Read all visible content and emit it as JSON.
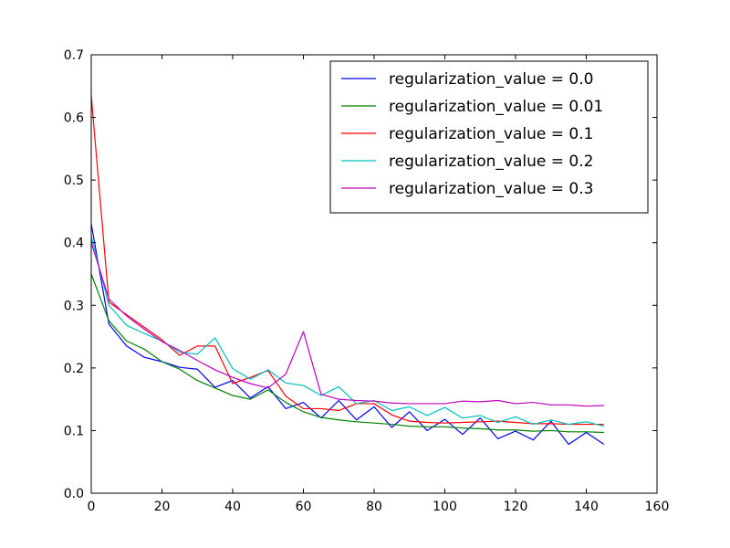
{
  "chart_data": {
    "type": "line",
    "title": "",
    "xlabel": "",
    "ylabel": "",
    "xlim": [
      0,
      160
    ],
    "ylim": [
      0.0,
      0.7
    ],
    "x_ticks": [
      0,
      20,
      40,
      60,
      80,
      100,
      120,
      140,
      160
    ],
    "y_ticks": [
      0.0,
      0.1,
      0.2,
      0.3,
      0.4,
      0.5,
      0.6,
      0.7
    ],
    "x_tick_labels": [
      "0",
      "20",
      "40",
      "60",
      "80",
      "100",
      "120",
      "140",
      "160"
    ],
    "y_tick_labels": [
      "0.0",
      "0.1",
      "0.2",
      "0.3",
      "0.4",
      "0.5",
      "0.6",
      "0.7"
    ],
    "grid": false,
    "legend_position": "top-right",
    "x": [
      0,
      5,
      10,
      15,
      20,
      25,
      30,
      35,
      40,
      45,
      50,
      55,
      60,
      65,
      70,
      75,
      80,
      85,
      90,
      95,
      100,
      105,
      110,
      115,
      120,
      125,
      130,
      135,
      140,
      145
    ],
    "series": [
      {
        "name": "regularization_value = 0.0",
        "color": "#0000ff",
        "values": [
          0.43,
          0.27,
          0.235,
          0.217,
          0.21,
          0.201,
          0.198,
          0.169,
          0.18,
          0.152,
          0.17,
          0.135,
          0.145,
          0.12,
          0.148,
          0.117,
          0.138,
          0.105,
          0.13,
          0.1,
          0.118,
          0.094,
          0.12,
          0.087,
          0.099,
          0.085,
          0.115,
          0.078,
          0.097,
          0.078
        ]
      },
      {
        "name": "regularization_value = 0.01",
        "color": "#008000",
        "values": [
          0.35,
          0.275,
          0.243,
          0.23,
          0.21,
          0.198,
          0.18,
          0.168,
          0.156,
          0.15,
          0.165,
          0.145,
          0.13,
          0.121,
          0.117,
          0.114,
          0.112,
          0.11,
          0.107,
          0.106,
          0.106,
          0.104,
          0.103,
          0.101,
          0.101,
          0.099,
          0.1,
          0.098,
          0.098,
          0.097
        ]
      },
      {
        "name": "regularization_value = 0.1",
        "color": "#ff0000",
        "values": [
          0.635,
          0.305,
          0.285,
          0.265,
          0.245,
          0.22,
          0.235,
          0.235,
          0.175,
          0.185,
          0.196,
          0.155,
          0.135,
          0.135,
          0.132,
          0.143,
          0.143,
          0.125,
          0.115,
          0.113,
          0.112,
          0.113,
          0.114,
          0.115,
          0.113,
          0.111,
          0.111,
          0.11,
          0.11,
          0.11
        ]
      },
      {
        "name": "regularization_value = 0.2",
        "color": "#00bfbf",
        "values": [
          0.41,
          0.3,
          0.268,
          0.255,
          0.243,
          0.225,
          0.222,
          0.248,
          0.199,
          0.182,
          0.197,
          0.176,
          0.172,
          0.156,
          0.17,
          0.143,
          0.148,
          0.132,
          0.138,
          0.124,
          0.137,
          0.12,
          0.124,
          0.113,
          0.122,
          0.11,
          0.117,
          0.11,
          0.114,
          0.107
        ]
      },
      {
        "name": "regularization_value = 0.3",
        "color": "#bf00bf",
        "values": [
          0.4,
          0.31,
          0.283,
          0.262,
          0.242,
          0.228,
          0.212,
          0.197,
          0.185,
          0.175,
          0.168,
          0.19,
          0.258,
          0.158,
          0.15,
          0.148,
          0.147,
          0.144,
          0.143,
          0.143,
          0.143,
          0.147,
          0.146,
          0.148,
          0.143,
          0.145,
          0.141,
          0.141,
          0.139,
          0.14
        ]
      }
    ]
  }
}
